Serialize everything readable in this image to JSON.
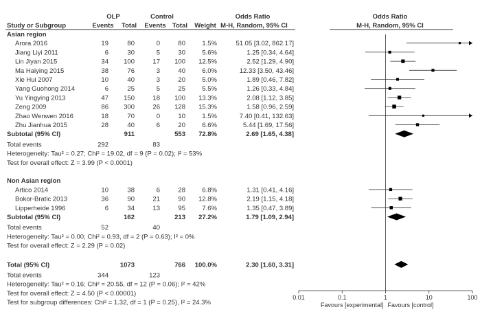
{
  "header": {
    "group1": "OLP",
    "group2": "Control",
    "col_study": "Study or Subgroup",
    "col_events1": "Events",
    "col_total1": "Total",
    "col_events2": "Events",
    "col_total2": "Total",
    "col_weight": "Weight",
    "col_or": "Odds Ratio",
    "col_or_method": "M-H, Random, 95% CI",
    "plot_title": "Odds Ratio",
    "plot_method": "M-H, Random, 95% CI"
  },
  "subgroups": [
    {
      "name": "Asian region",
      "studies": [
        {
          "study": "Arora 2016",
          "e1": "19",
          "t1": "80",
          "e2": "0",
          "t2": "80",
          "weight": "1.5%",
          "ci_text": "51.05 [3.02, 862.17]",
          "or": 51.05,
          "lo": 3.02,
          "hi": 862.17
        },
        {
          "study": "Jiang Liyi 2011",
          "e1": "6",
          "t1": "30",
          "e2": "5",
          "t2": "30",
          "weight": "5.6%",
          "ci_text": "1.25 [0.34, 4.64]",
          "or": 1.25,
          "lo": 0.34,
          "hi": 4.64
        },
        {
          "study": "Lin Jiyan 2015",
          "e1": "34",
          "t1": "100",
          "e2": "17",
          "t2": "100",
          "weight": "12.5%",
          "ci_text": "2.52 [1.29, 4.90]",
          "or": 2.52,
          "lo": 1.29,
          "hi": 4.9
        },
        {
          "study": "Ma Haiying 2015",
          "e1": "38",
          "t1": "76",
          "e2": "3",
          "t2": "40",
          "weight": "6.0%",
          "ci_text": "12.33 [3.50, 43.46]",
          "or": 12.33,
          "lo": 3.5,
          "hi": 43.46
        },
        {
          "study": "Xie Hui 2007",
          "e1": "10",
          "t1": "40",
          "e2": "3",
          "t2": "20",
          "weight": "5.0%",
          "ci_text": "1.89 [0.46, 7.82]",
          "or": 1.89,
          "lo": 0.46,
          "hi": 7.82
        },
        {
          "study": "Yang Guohong 2014",
          "e1": "6",
          "t1": "25",
          "e2": "5",
          "t2": "25",
          "weight": "5.5%",
          "ci_text": "1.26 [0.33, 4.84]",
          "or": 1.26,
          "lo": 0.33,
          "hi": 4.84
        },
        {
          "study": "Yu Yingying 2013",
          "e1": "47",
          "t1": "150",
          "e2": "18",
          "t2": "100",
          "weight": "13.3%",
          "ci_text": "2.08 [1.12, 3.85]",
          "or": 2.08,
          "lo": 1.12,
          "hi": 3.85
        },
        {
          "study": "Zeng 2009",
          "e1": "86",
          "t1": "300",
          "e2": "26",
          "t2": "128",
          "weight": "15.3%",
          "ci_text": "1.58 [0.96, 2.59]",
          "or": 1.58,
          "lo": 0.96,
          "hi": 2.59
        },
        {
          "study": "Zhao Wenwen 2016",
          "e1": "18",
          "t1": "70",
          "e2": "0",
          "t2": "10",
          "weight": "1.5%",
          "ci_text": "7.40 [0.41, 132.63]",
          "or": 7.4,
          "lo": 0.41,
          "hi": 132.63
        },
        {
          "study": "Zhu Jianhua 2015",
          "e1": "28",
          "t1": "40",
          "e2": "6",
          "t2": "20",
          "weight": "6.6%",
          "ci_text": "5.44 [1.69, 17.56]",
          "or": 5.44,
          "lo": 1.69,
          "hi": 17.56
        }
      ],
      "subtotal": {
        "label": "Subtotal (95% CI)",
        "t1": "911",
        "t2": "553",
        "weight": "72.8%",
        "ci_text": "2.69 [1.65, 4.38]",
        "or": 2.69,
        "lo": 1.65,
        "hi": 4.38
      },
      "total_events": {
        "label": "Total events",
        "e1": "292",
        "e2": "83"
      },
      "heterogeneity": "Heterogeneity: Tau² = 0.27; Chi² = 19.02, df = 9 (P = 0.02); I² = 53%",
      "overall_effect": "Test for overall effect: Z = 3.99 (P < 0.0001)"
    },
    {
      "name": "Non Asian region",
      "studies": [
        {
          "study": "Artico 2014",
          "e1": "10",
          "t1": "38",
          "e2": "6",
          "t2": "28",
          "weight": "6.8%",
          "ci_text": "1.31 [0.41, 4.16]",
          "or": 1.31,
          "lo": 0.41,
          "hi": 4.16
        },
        {
          "study": "Bokor-Bratic 2013",
          "e1": "36",
          "t1": "90",
          "e2": "21",
          "t2": "90",
          "weight": "12.8%",
          "ci_text": "2.19 [1.15, 4.18]",
          "or": 2.19,
          "lo": 1.15,
          "hi": 4.18
        },
        {
          "study": "Lipperheide 1996",
          "e1": "6",
          "t1": "34",
          "e2": "13",
          "t2": "95",
          "weight": "7.6%",
          "ci_text": "1.35 [0.47, 3.89]",
          "or": 1.35,
          "lo": 0.47,
          "hi": 3.89
        }
      ],
      "subtotal": {
        "label": "Subtotal (95% CI)",
        "t1": "162",
        "t2": "213",
        "weight": "27.2%",
        "ci_text": "1.79 [1.09, 2.94]",
        "or": 1.79,
        "lo": 1.09,
        "hi": 2.94
      },
      "total_events": {
        "label": "Total events",
        "e1": "52",
        "e2": "40"
      },
      "heterogeneity": "Heterogeneity: Tau² = 0.00; Chi² = 0.93, df = 2 (P = 0.63); I² = 0%",
      "overall_effect": "Test for overall effect: Z = 2.29 (P = 0.02)"
    }
  ],
  "total": {
    "label": "Total (95% CI)",
    "t1": "1073",
    "t2": "766",
    "weight": "100.0%",
    "ci_text": "2.30 [1.60, 3.31]",
    "or": 2.3,
    "lo": 1.6,
    "hi": 3.31,
    "events_label": "Total events",
    "e1": "344",
    "e2": "123",
    "heterogeneity": "Heterogeneity: Tau² = 0.16; Chi² = 20.55, df = 12 (P = 0.06); I² = 42%",
    "overall_effect": "Test for overall effect: Z = 4.50 (P < 0.00001)",
    "subgroup_diff": "Test for subgroup differences: Chi² = 1.32, df = 1 (P = 0.25), I² = 24.3%"
  },
  "chart_data": {
    "type": "forest",
    "scale": "log",
    "xlim": [
      0.01,
      100
    ],
    "xticks": [
      "0.01",
      "0.1",
      "1",
      "10",
      "100"
    ],
    "xtick_values": [
      0.01,
      0.1,
      1,
      10,
      100
    ],
    "left_label": "Favours [experimental]",
    "right_label": "Favours [control]"
  },
  "colors": {
    "marker": "#000000",
    "line": "#333333",
    "text": "#333333"
  }
}
